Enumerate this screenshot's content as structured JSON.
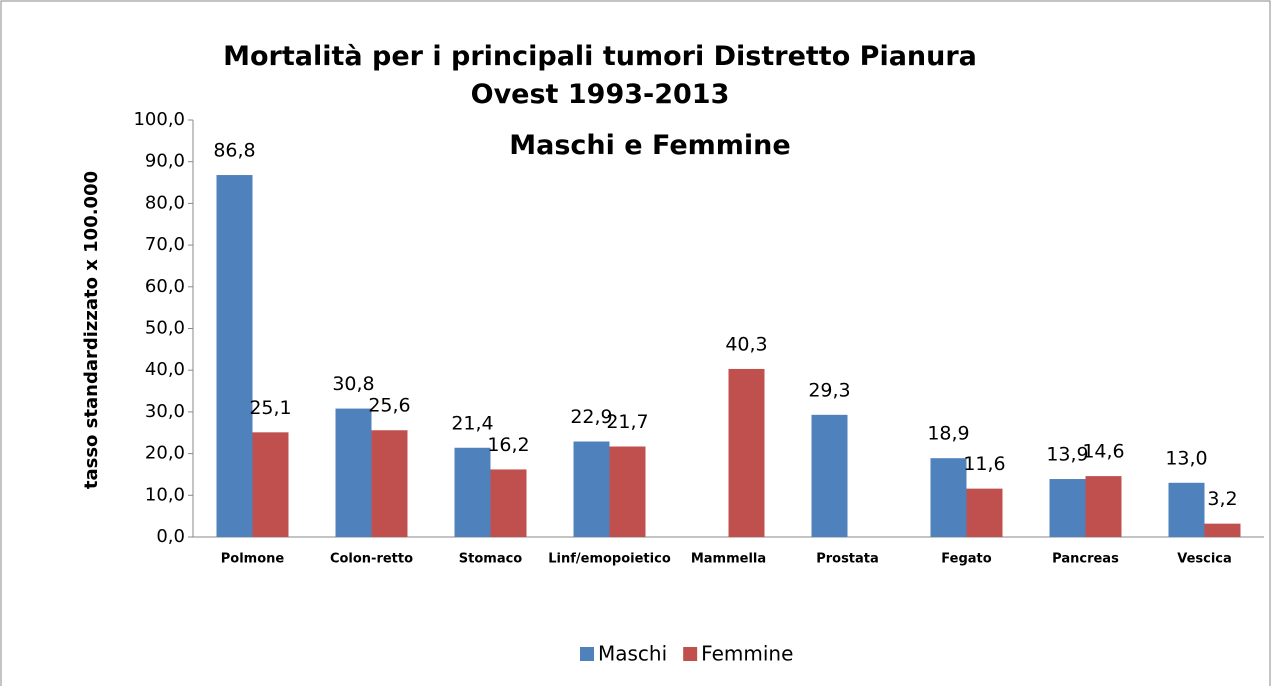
{
  "chart_data": {
    "type": "bar",
    "title": "Mortalità per i principali tumori Distretto Pianura Ovest 1993-2013",
    "subtitle": "Maschi e Femmine",
    "y_label": "tasso standardizzato x 100.000",
    "categories": [
      "Polmone",
      "Colon-retto",
      "Stomaco",
      "Linf/emopoietico",
      "Mammella",
      "Prostata",
      "Fegato",
      "Pancreas",
      "Vescica"
    ],
    "series": [
      {
        "name": "Maschi",
        "color": "#4f81bd",
        "values": [
          86.8,
          30.8,
          21.4,
          22.9,
          null,
          29.3,
          18.9,
          13.9,
          13.0
        ],
        "value_labels": [
          "86,8",
          "30,8",
          "21,4",
          "22,9",
          null,
          "29,3",
          "18,9",
          "13,9",
          "13,0"
        ]
      },
      {
        "name": "Femmine",
        "color": "#c0504d",
        "values": [
          25.1,
          25.6,
          16.2,
          21.7,
          40.3,
          null,
          11.6,
          14.6,
          3.2
        ],
        "value_labels": [
          "25,1",
          "25,6",
          "16,2",
          "21,7",
          "40,3",
          null,
          "11,6",
          "14,6",
          "3,2"
        ]
      }
    ],
    "ylim": [
      0,
      100
    ],
    "yticks": [
      {
        "value": 0,
        "label": "0,0"
      },
      {
        "value": 10,
        "label": "10,0"
      },
      {
        "value": 20,
        "label": "20,0"
      },
      {
        "value": 30,
        "label": "30,0"
      },
      {
        "value": 40,
        "label": "40,0"
      },
      {
        "value": 50,
        "label": "50,0"
      },
      {
        "value": 60,
        "label": "60,0"
      },
      {
        "value": 70,
        "label": "70,0"
      },
      {
        "value": 80,
        "label": "80,0"
      },
      {
        "value": 90,
        "label": "90,0"
      },
      {
        "value": 100,
        "label": "100,0"
      }
    ],
    "grid": false,
    "legend": "bottom"
  }
}
